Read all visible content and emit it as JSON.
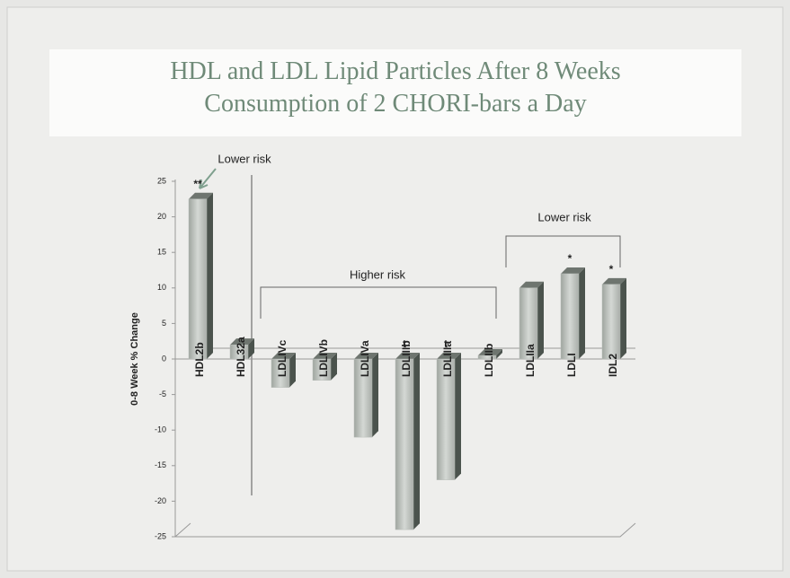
{
  "chart_data": {
    "type": "bar",
    "title": "HDL and LDL Lipid Particles After 8 Weeks Consumption of 2 CHORI-bars a Day",
    "y_label": "0-8 Week % Change",
    "categories": [
      "HDL2b",
      "HDL32a",
      "LDLIVc",
      "LDLIVb",
      "LDLIVa",
      "LDLIIIb",
      "LDLIIIa",
      "LDLIIb",
      "LDLIIa",
      "LDLI",
      "IDL2"
    ],
    "values": [
      22.5,
      2,
      -4,
      -3,
      -11,
      -24,
      -17,
      0.5,
      10,
      12,
      10.5
    ],
    "annotations": [
      "**",
      null,
      null,
      null,
      null,
      "t",
      "t",
      null,
      null,
      "*",
      "*"
    ],
    "region_labels": [
      "Lower risk",
      "Higher risk",
      "Lower risk"
    ],
    "color": "#b9beb9",
    "ylim": [
      -25,
      25
    ],
    "yticks": [
      -25,
      -20,
      -15,
      -10,
      -5,
      0,
      5,
      10,
      15,
      20,
      25
    ]
  }
}
